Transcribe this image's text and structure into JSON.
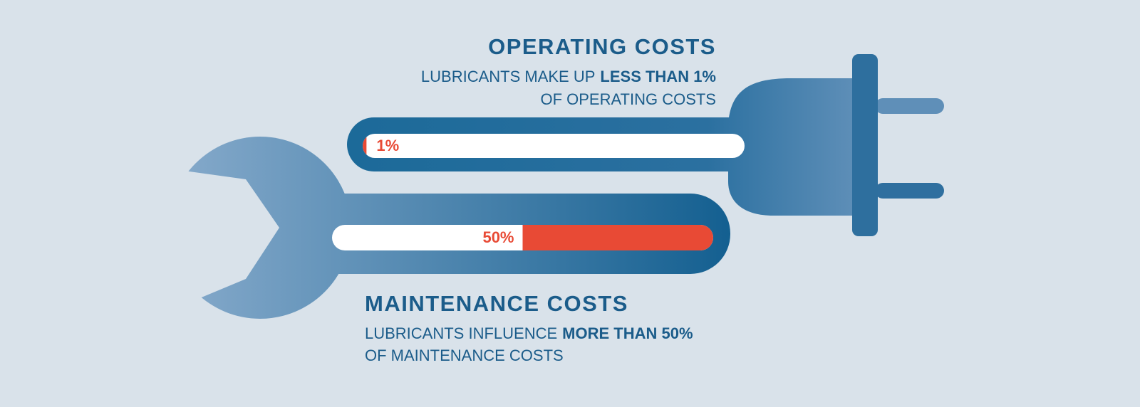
{
  "chart_data": {
    "type": "progress",
    "xlim": [
      0,
      100
    ],
    "panels": [
      {
        "title": "OPERATING COSTS",
        "text": [
          "LUBRICANTS MAKE UP",
          "LESS THAN 1%",
          "OF OPERATING COSTS"
        ],
        "value": 1,
        "value_label": "1%",
        "anchor": "left",
        "color": "#e84a35"
      },
      {
        "title": "MAINTENANCE COSTS",
        "text": [
          "LUBRICANTS INFLUENCE",
          "MORE THAN 50%",
          "OF MAINTENANCE COSTS"
        ],
        "value": 50,
        "value_label": "50%",
        "anchor": "right",
        "color": "#e84a35"
      }
    ]
  }
}
